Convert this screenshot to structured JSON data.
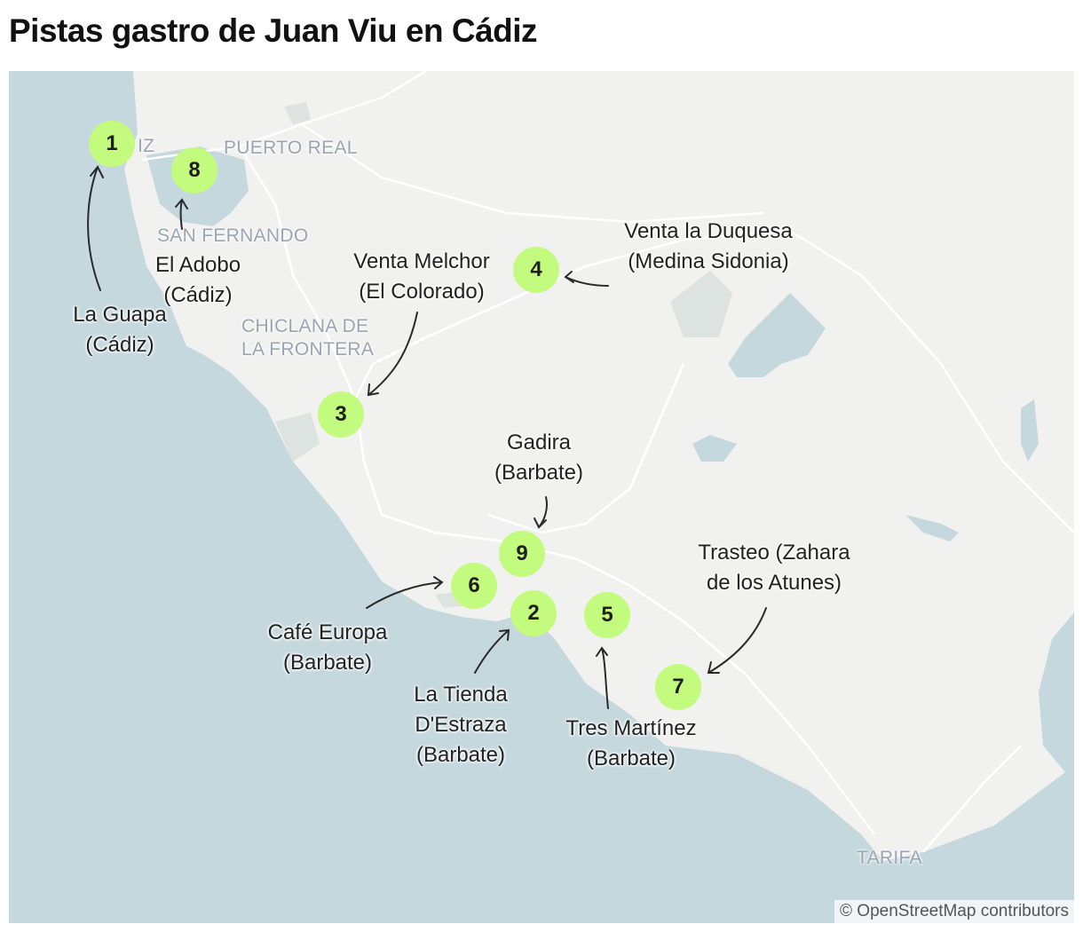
{
  "title": "Pistas gastro de Juan Viu en Cádiz",
  "colors": {
    "sea": "#c5d8de",
    "land": "#f1f1ef",
    "marker": "#c3fb7e",
    "park": "#dde3e0"
  },
  "places": [
    "PUERTO REAL",
    "SAN FERNANDO",
    "CHICLANA DE",
    "LA FRONTERA",
    "TARIFA",
    "IZ"
  ],
  "markers": [
    {
      "num": "1",
      "label": "La Guapa (Cádiz)",
      "lines": [
        "La Guapa",
        "(Cádiz)"
      ]
    },
    {
      "num": "2",
      "label": "La Tienda D'Estraza (Barbate)",
      "lines": [
        "La Tienda",
        "D'Estraza",
        "(Barbate)"
      ]
    },
    {
      "num": "3",
      "label": "Venta Melchor (El Colorado)",
      "lines": [
        "Venta Melchor",
        "(El Colorado)"
      ]
    },
    {
      "num": "4",
      "label": "Venta la Duquesa (Medina Sidonia)",
      "lines": [
        "Venta la Duquesa",
        "(Medina Sidonia)"
      ]
    },
    {
      "num": "5",
      "label": "Tres Martínez (Barbate)",
      "lines": [
        "Tres Martínez",
        "(Barbate)"
      ]
    },
    {
      "num": "6",
      "label": "Café Europa (Barbate)",
      "lines": [
        "Café Europa",
        "(Barbate)"
      ]
    },
    {
      "num": "7",
      "label": "Trasteo (Zahara de los Atunes)",
      "lines": [
        "Trasteo (Zahara",
        "de los Atunes)"
      ]
    },
    {
      "num": "8",
      "label": "El Adobo (Cádiz)",
      "lines": [
        "El Adobo",
        "(Cádiz)"
      ]
    },
    {
      "num": "9",
      "label": "Gadira (Barbate)",
      "lines": [
        "Gadira",
        "(Barbate)"
      ]
    }
  ],
  "attribution": "© OpenStreetMap contributors"
}
